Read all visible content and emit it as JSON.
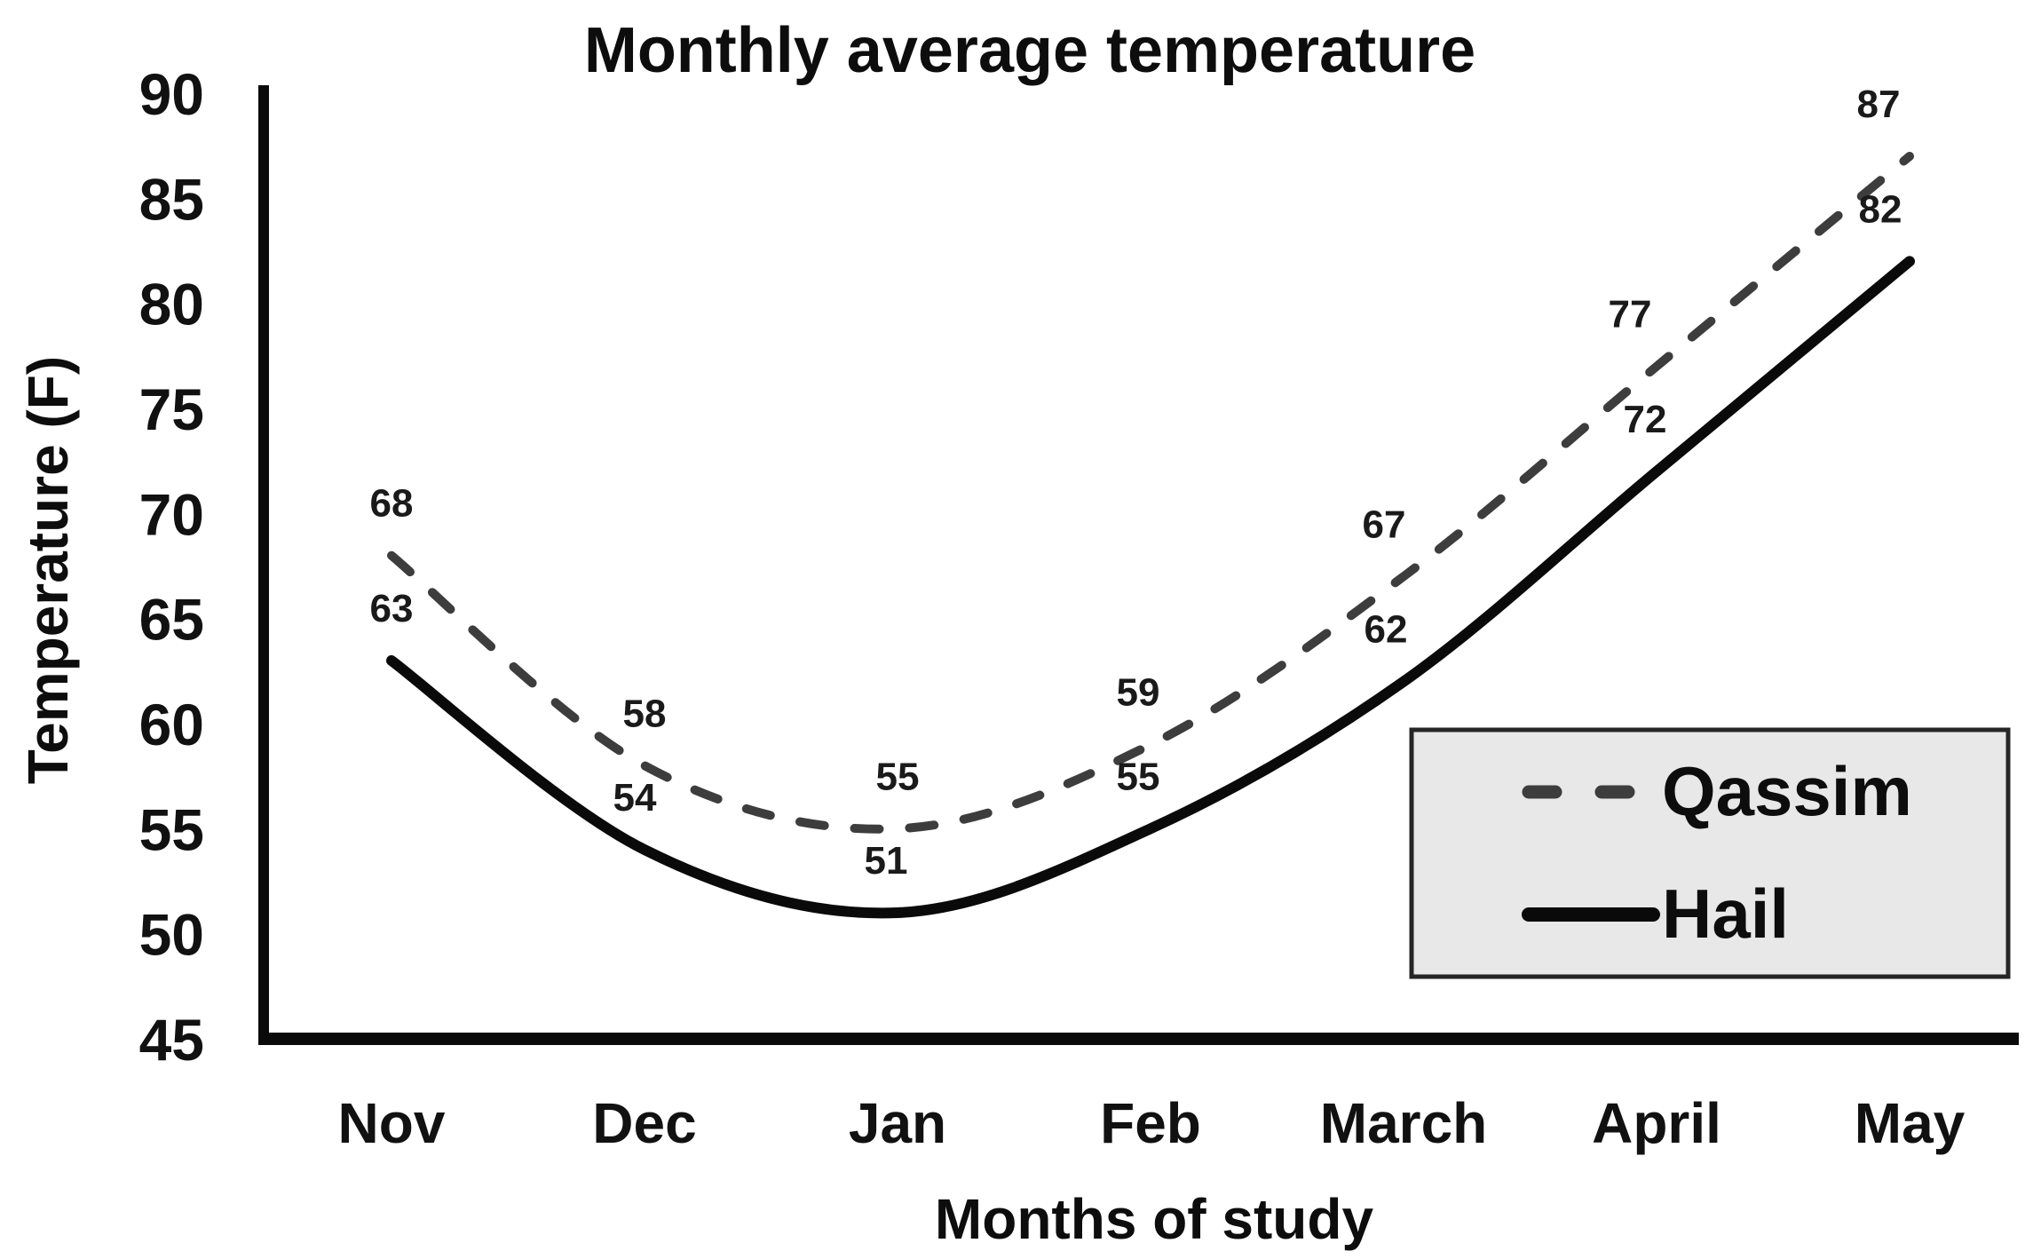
{
  "chart_data": {
    "type": "line",
    "title": "Monthly average temperature",
    "xlabel": "Months of study",
    "ylabel": "Temperature (F)",
    "categories": [
      "Nov",
      "Dec",
      "Jan",
      "Feb",
      "March",
      "April",
      "May"
    ],
    "y_ticks": [
      90,
      85,
      80,
      75,
      70,
      65,
      60,
      55,
      50,
      45
    ],
    "ylim": [
      45,
      90
    ],
    "grid": false,
    "smooth_lines": true,
    "data_labels_shown": true,
    "series": [
      {
        "name": "Qassim",
        "line_style": "dashed",
        "color": "#3d3d3d",
        "values": [
          68,
          58,
          55,
          59,
          67,
          77,
          87
        ]
      },
      {
        "name": "Hail",
        "line_style": "solid",
        "color": "#0a0a0a",
        "values": [
          63,
          54,
          51,
          55,
          62,
          72,
          82
        ]
      }
    ],
    "legend": {
      "position": "inside-right",
      "background": "#e8e8e8",
      "border_color": "#262626",
      "entries": [
        "Qassim",
        "Hail"
      ]
    }
  },
  "colors": {
    "background": "#ffffff",
    "axis": "#0a0a0a",
    "text": "#111111",
    "data_label": "#1a1a1a"
  }
}
